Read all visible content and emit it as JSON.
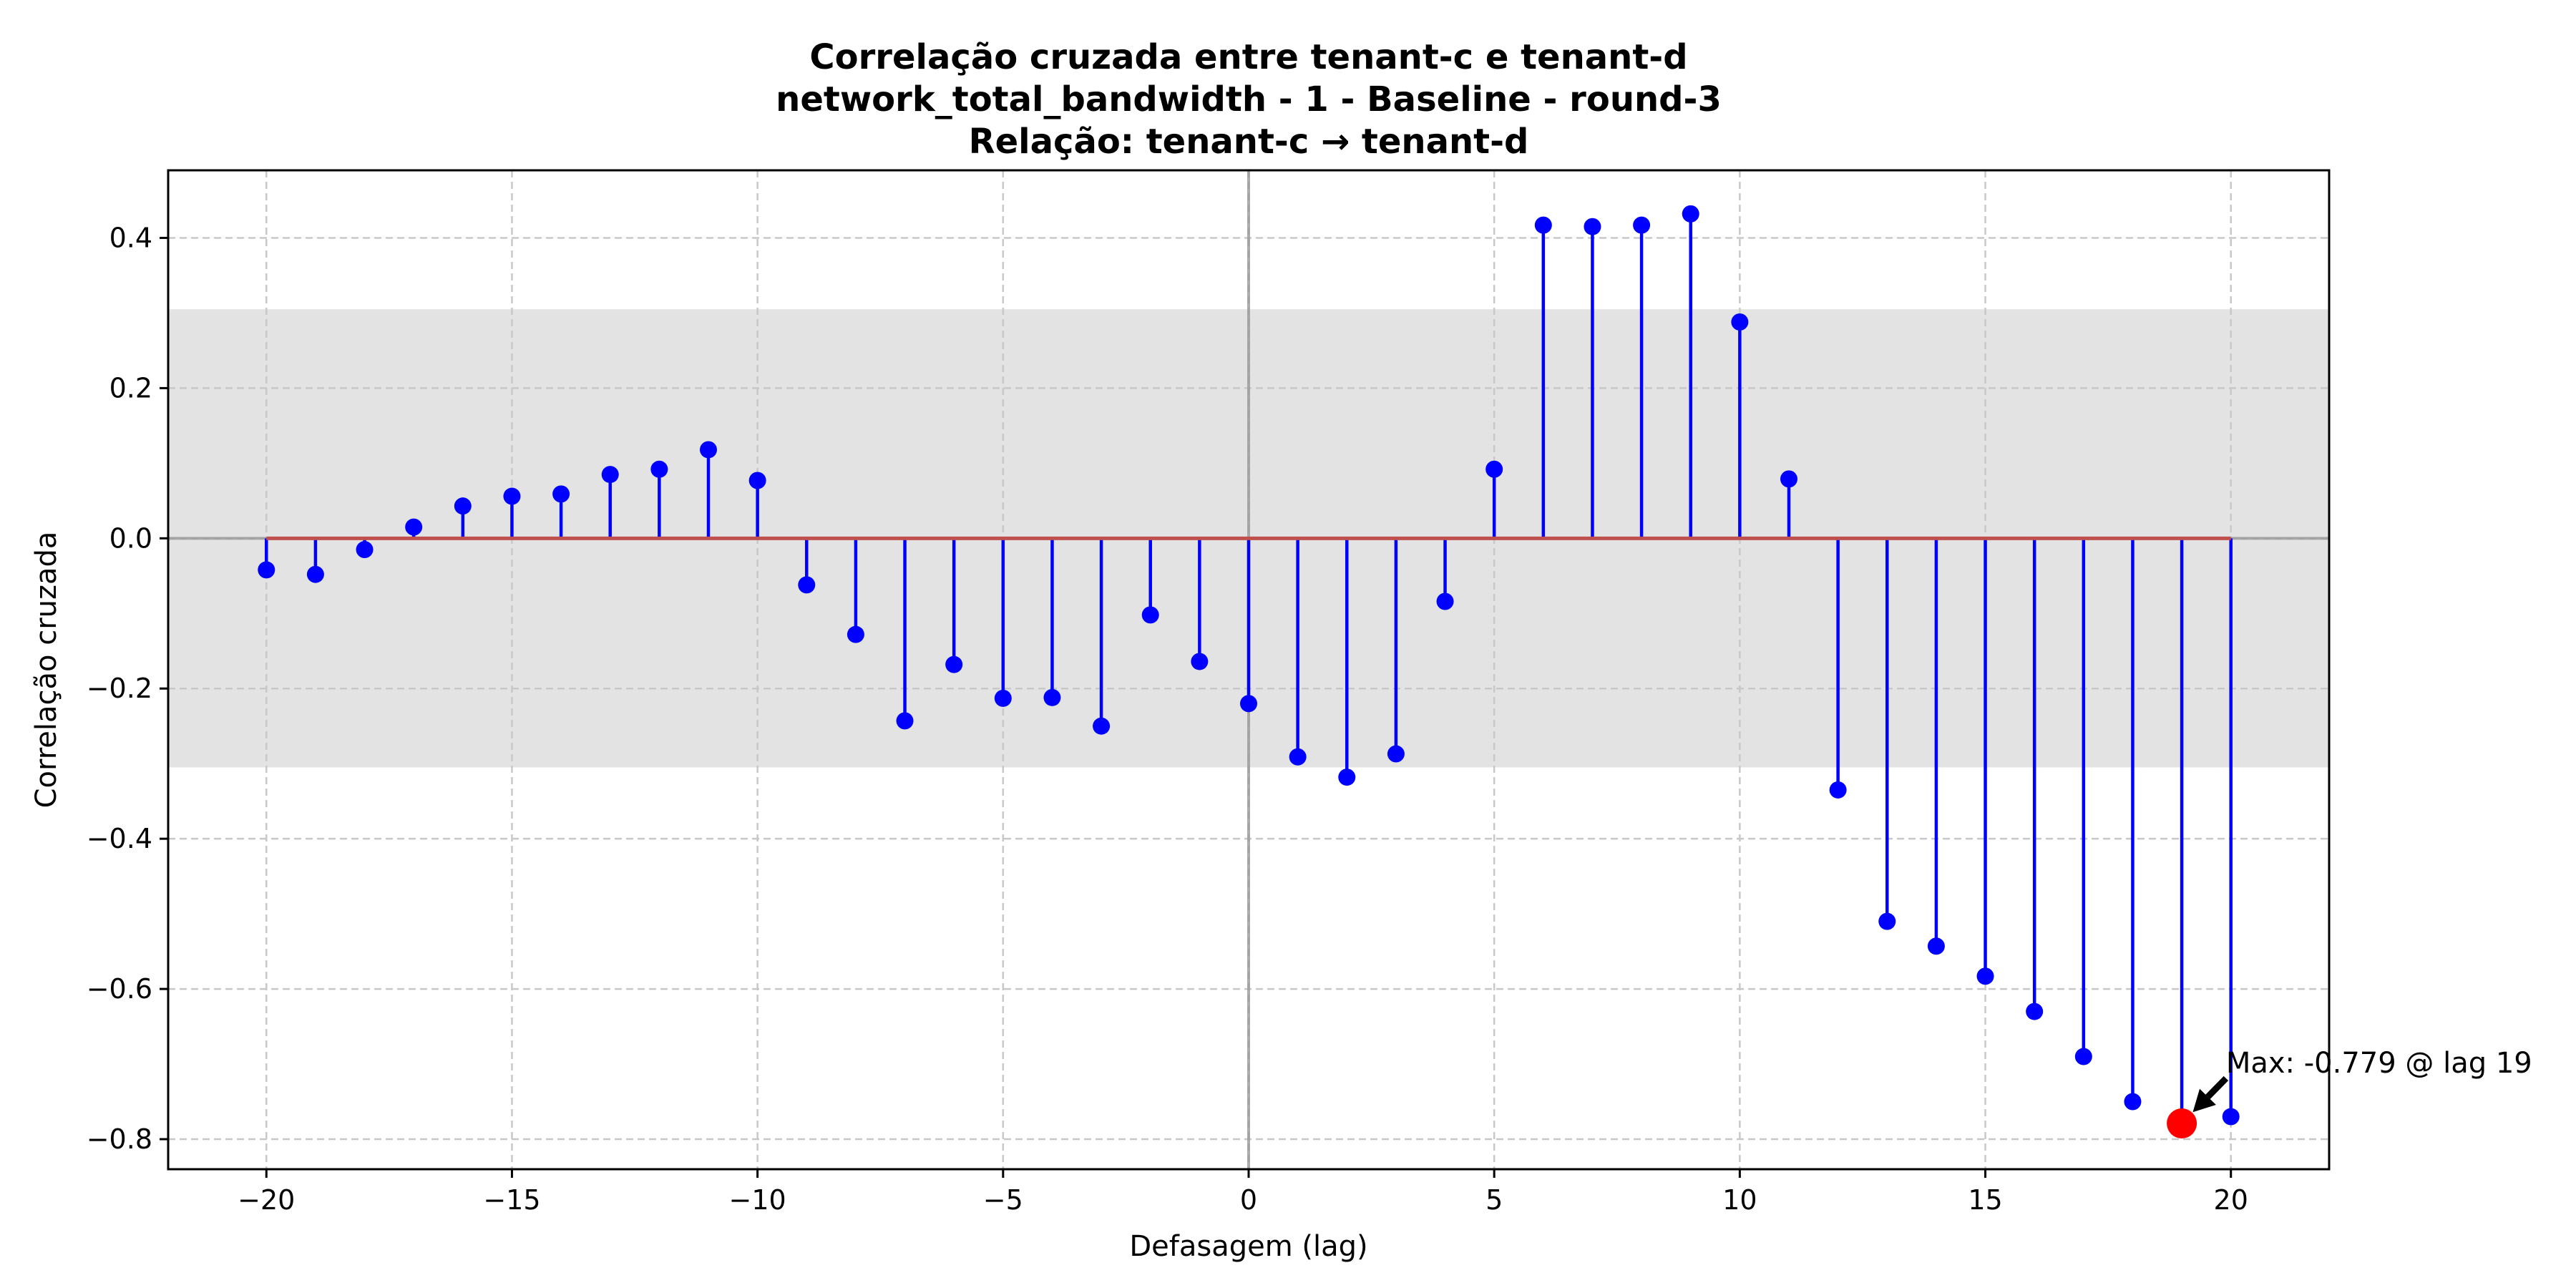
{
  "chart_data": {
    "type": "stem",
    "title_lines": [
      "Correlação cruzada entre tenant-c e tenant-d",
      "network_total_bandwidth - 1 - Baseline - round-3",
      "Relação: tenant-c → tenant-d"
    ],
    "xlabel": "Defasagem (lag)",
    "ylabel": "Correlação cruzada",
    "xlim": [
      -22,
      22
    ],
    "ylim": [
      -0.84,
      0.49
    ],
    "xticks": [
      -20,
      -15,
      -10,
      -5,
      0,
      5,
      10,
      15,
      20
    ],
    "xtick_labels": [
      "−20",
      "−15",
      "−10",
      "−5",
      "0",
      "5",
      "10",
      "15",
      "20"
    ],
    "yticks": [
      -0.8,
      -0.6,
      -0.4,
      -0.2,
      0.0,
      0.2,
      0.4
    ],
    "ytick_labels": [
      "−0.8",
      "−0.6",
      "−0.4",
      "−0.2",
      "0.0",
      "0.2",
      "0.4"
    ],
    "grid": true,
    "confidence_band": [
      -0.305,
      0.305
    ],
    "lags": [
      -20,
      -19,
      -18,
      -17,
      -16,
      -15,
      -14,
      -13,
      -12,
      -11,
      -10,
      -9,
      -8,
      -7,
      -6,
      -5,
      -4,
      -3,
      -2,
      -1,
      0,
      1,
      2,
      3,
      4,
      5,
      6,
      7,
      8,
      9,
      10,
      11,
      12,
      13,
      14,
      15,
      16,
      17,
      18,
      19,
      20
    ],
    "values": [
      -0.042,
      -0.048,
      -0.015,
      0.015,
      0.043,
      0.056,
      0.059,
      0.085,
      0.092,
      0.118,
      0.077,
      -0.062,
      -0.128,
      -0.243,
      -0.168,
      -0.213,
      -0.212,
      -0.25,
      -0.102,
      -0.164,
      -0.22,
      -0.291,
      -0.318,
      -0.287,
      -0.084,
      0.092,
      0.417,
      0.415,
      0.417,
      0.432,
      0.288,
      0.079,
      -0.335,
      -0.51,
      -0.543,
      -0.583,
      -0.63,
      -0.69,
      -0.75,
      -0.779,
      -0.77
    ],
    "max": {
      "lag": 19,
      "value": -0.779,
      "label": "Max: -0.779 @ lag 19"
    },
    "colors": {
      "stem": "#0000ff",
      "baseline": "#c0504d",
      "max_marker": "#ff0000",
      "band": "#e3e3e3",
      "grid": "#c8c8c8",
      "zero_lines": "#999999"
    }
  }
}
